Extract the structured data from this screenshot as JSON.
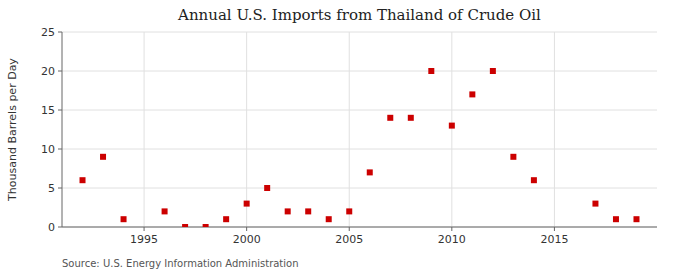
{
  "chart_data": {
    "type": "scatter",
    "title": "Annual U.S. Imports from Thailand of Crude Oil",
    "ylabel": "Thousand Barrels per Day",
    "annotations": [
      "Source: U.S. Energy Information Administration"
    ],
    "x": [
      1992,
      1993,
      1994,
      1996,
      1997,
      1998,
      1999,
      2000,
      2001,
      2002,
      2003,
      2004,
      2005,
      2006,
      2007,
      2008,
      2009,
      2010,
      2011,
      2012,
      2013,
      2014,
      2017,
      2018,
      2019
    ],
    "values": [
      6,
      9,
      1,
      2,
      0,
      0,
      1,
      3,
      5,
      2,
      2,
      1,
      2,
      7,
      14,
      14,
      20,
      13,
      17,
      20,
      9,
      6,
      3,
      1,
      1
    ],
    "color": "#cc0000",
    "marker": "square",
    "xlim": [
      1991,
      2020
    ],
    "ylim": [
      0,
      25
    ],
    "xticks": [
      1995,
      2000,
      2005,
      2010,
      2015
    ],
    "yticks": [
      0,
      5,
      10,
      15,
      20,
      25
    ],
    "grid": true
  }
}
